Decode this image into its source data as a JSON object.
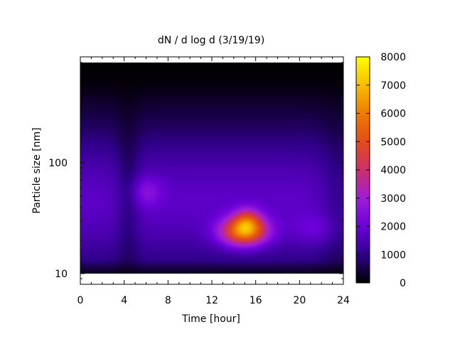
{
  "chart_data": {
    "type": "heatmap",
    "title": "dN / d log d (3/19/19)",
    "xlabel": "Time [hour]",
    "ylabel": "Particle size [nm]",
    "x_range": [
      0,
      24
    ],
    "x_ticks": [
      0,
      4,
      8,
      12,
      16,
      20,
      24
    ],
    "x_tick_labels": [
      "0",
      "4",
      "8",
      "12",
      "16",
      "20",
      "24"
    ],
    "y_scale": "log",
    "y_range": [
      8,
      900
    ],
    "y_ticks": [
      10,
      100
    ],
    "y_tick_labels": [
      "10",
      "100"
    ],
    "colorbar": {
      "range": [
        0,
        8000
      ],
      "ticks": [
        0,
        1000,
        2000,
        3000,
        4000,
        5000,
        6000,
        7000,
        8000
      ],
      "tick_labels": [
        "0",
        "1000",
        "2000",
        "3000",
        "4000",
        "5000",
        "6000",
        "7000",
        "8000"
      ],
      "colormap": [
        "#000000",
        "#30008a",
        "#6a00d8",
        "#a01ed8",
        "#cc2f6a",
        "#e24c18",
        "#ee7c00",
        "#f8bd00",
        "#ffff00"
      ]
    },
    "data_extent": {
      "y_min_nm": 10,
      "y_max_nm": 800
    },
    "features": [
      {
        "description": "nucleation/growth burst",
        "x": 15,
        "y": 24,
        "value": 6400
      },
      {
        "description": "faint mode",
        "x": 6,
        "y": 55,
        "value": 2700
      },
      {
        "description": "faint mode",
        "x": 21,
        "y": 25,
        "value": 2400
      }
    ],
    "grid": false
  }
}
